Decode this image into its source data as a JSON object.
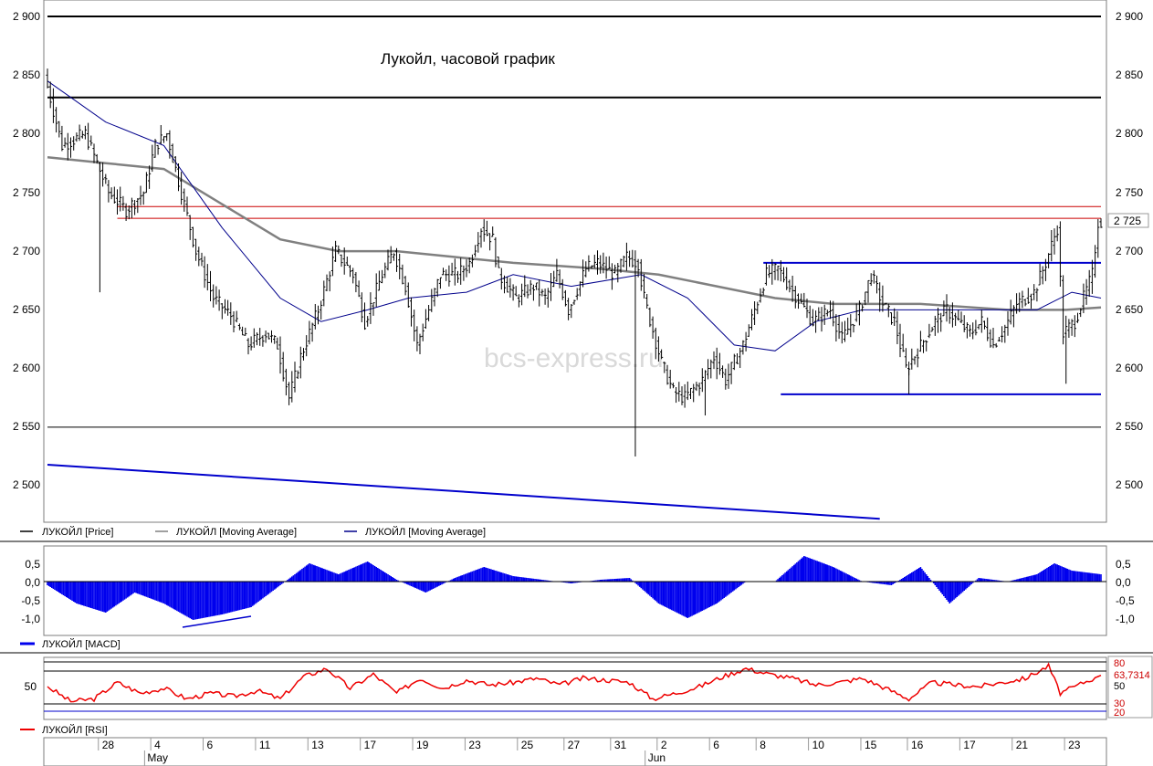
{
  "chart_data": [
    {
      "type": "candlestick",
      "title": "Лукойл, часовой график",
      "watermark": "bcs-express.ru",
      "ylim": [
        2470,
        2910
      ],
      "y_ticks": [
        "2 900",
        "2 850",
        "2 800",
        "2 750",
        "2 700",
        "2 650",
        "2 600",
        "2 550",
        "2 500"
      ],
      "last_price_label": "2 725",
      "legend": [
        "ЛУКОЙЛ [Price]",
        "ЛУКОЙЛ [Moving Average]",
        "ЛУКОЙЛ [Moving Average]"
      ],
      "series_colors": {
        "price": "#000000",
        "ma_slow": "#808080",
        "ma_fast": "#00008b"
      },
      "price_path": [
        [
          0,
          2850
        ],
        [
          3,
          2790
        ],
        [
          7,
          2800
        ],
        [
          11,
          2750
        ],
        [
          14,
          2735
        ],
        [
          17,
          2750
        ],
        [
          19,
          2790
        ],
        [
          21,
          2800
        ],
        [
          24,
          2740
        ],
        [
          26,
          2700
        ],
        [
          29,
          2660
        ],
        [
          32,
          2645
        ],
        [
          35,
          2620
        ],
        [
          38,
          2630
        ],
        [
          40,
          2620
        ],
        [
          42,
          2575
        ],
        [
          44,
          2610
        ],
        [
          47,
          2650
        ],
        [
          50,
          2700
        ],
        [
          53,
          2680
        ],
        [
          55,
          2640
        ],
        [
          58,
          2680
        ],
        [
          60,
          2700
        ],
        [
          62,
          2670
        ],
        [
          64,
          2620
        ],
        [
          66,
          2650
        ],
        [
          68,
          2680
        ],
        [
          71,
          2680
        ],
        [
          73,
          2690
        ],
        [
          75,
          2720
        ],
        [
          77,
          2710
        ],
        [
          78,
          2680
        ],
        [
          81,
          2660
        ],
        [
          84,
          2670
        ],
        [
          86,
          2660
        ],
        [
          88,
          2680
        ],
        [
          90,
          2650
        ],
        [
          93,
          2685
        ],
        [
          95,
          2690
        ],
        [
          98,
          2680
        ],
        [
          100,
          2695
        ],
        [
          102,
          2690
        ],
        [
          103,
          2660
        ],
        [
          106,
          2605
        ],
        [
          108,
          2580
        ],
        [
          110,
          2575
        ],
        [
          113,
          2590
        ],
        [
          115,
          2610
        ],
        [
          117,
          2590
        ],
        [
          120,
          2620
        ],
        [
          122,
          2650
        ],
        [
          124,
          2680
        ],
        [
          126,
          2685
        ],
        [
          128,
          2670
        ],
        [
          130,
          2655
        ],
        [
          132,
          2640
        ],
        [
          135,
          2650
        ],
        [
          137,
          2625
        ],
        [
          140,
          2650
        ],
        [
          142,
          2680
        ],
        [
          144,
          2655
        ],
        [
          146,
          2640
        ],
        [
          148,
          2600
        ],
        [
          150,
          2615
        ],
        [
          153,
          2640
        ],
        [
          155,
          2650
        ],
        [
          157,
          2640
        ],
        [
          159,
          2630
        ],
        [
          161,
          2640
        ],
        [
          163,
          2620
        ],
        [
          165,
          2635
        ],
        [
          167,
          2655
        ],
        [
          170,
          2665
        ],
        [
          172,
          2690
        ],
        [
          174,
          2720
        ],
        [
          175,
          2630
        ],
        [
          177,
          2640
        ],
        [
          180,
          2680
        ],
        [
          181,
          2725
        ]
      ],
      "ma_fast_path": [
        [
          0,
          2845
        ],
        [
          10,
          2810
        ],
        [
          20,
          2790
        ],
        [
          30,
          2720
        ],
        [
          40,
          2660
        ],
        [
          47,
          2640
        ],
        [
          55,
          2650
        ],
        [
          62,
          2660
        ],
        [
          72,
          2665
        ],
        [
          80,
          2680
        ],
        [
          90,
          2670
        ],
        [
          102,
          2680
        ],
        [
          110,
          2660
        ],
        [
          118,
          2620
        ],
        [
          125,
          2615
        ],
        [
          132,
          2640
        ],
        [
          140,
          2650
        ],
        [
          150,
          2650
        ],
        [
          160,
          2650
        ],
        [
          170,
          2650
        ],
        [
          176,
          2665
        ],
        [
          181,
          2660
        ]
      ],
      "ma_slow_path": [
        [
          0,
          2780
        ],
        [
          10,
          2775
        ],
        [
          20,
          2770
        ],
        [
          30,
          2740
        ],
        [
          40,
          2710
        ],
        [
          50,
          2700
        ],
        [
          60,
          2700
        ],
        [
          70,
          2695
        ],
        [
          80,
          2690
        ],
        [
          95,
          2685
        ],
        [
          105,
          2680
        ],
        [
          115,
          2670
        ],
        [
          125,
          2660
        ],
        [
          135,
          2655
        ],
        [
          150,
          2655
        ],
        [
          165,
          2650
        ],
        [
          175,
          2650
        ],
        [
          181,
          2652
        ]
      ],
      "annotation_lines": [
        {
          "color": "#000000",
          "width": 2,
          "points": [
            [
              0,
              2900
            ],
            [
              181,
              2900
            ]
          ]
        },
        {
          "color": "#000000",
          "width": 2,
          "points": [
            [
              0,
              2831
            ],
            [
              181,
              2831
            ]
          ]
        },
        {
          "color": "#000000",
          "width": 1,
          "points": [
            [
              0,
              2550
            ],
            [
              181,
              2550
            ]
          ]
        },
        {
          "color": "#cc0000",
          "width": 1,
          "points": [
            [
              12,
              2738
            ],
            [
              181,
              2738
            ]
          ]
        },
        {
          "color": "#cc0000",
          "width": 1,
          "points": [
            [
              12,
              2728
            ],
            [
              181,
              2728
            ]
          ]
        },
        {
          "color": "#0000cc",
          "width": 2,
          "points": [
            [
              123,
              2690
            ],
            [
              181,
              2690
            ]
          ]
        },
        {
          "color": "#0000cc",
          "width": 2,
          "points": [
            [
              126,
              2578
            ],
            [
              181,
              2578
            ]
          ]
        },
        {
          "color": "#0000cc",
          "width": 2,
          "points": [
            [
              0,
              2518
            ],
            [
              143,
              2472
            ]
          ]
        }
      ]
    },
    {
      "type": "area",
      "legend": "ЛУКОЙЛ [MACD]",
      "color": "#0000ee",
      "ylim": [
        -1.2,
        0.75
      ],
      "y_ticks": [
        "0,5",
        "0,0",
        "-0,5",
        "-1,0"
      ],
      "x": [
        0,
        5,
        10,
        15,
        20,
        25,
        30,
        35,
        40,
        45,
        50,
        55,
        60,
        65,
        70,
        75,
        80,
        85,
        90,
        95,
        100,
        105,
        110,
        115,
        120,
        125,
        130,
        135,
        140,
        145,
        150,
        155,
        160,
        165,
        170,
        173,
        176,
        181
      ],
      "values": [
        -0.1,
        -0.6,
        -0.85,
        -0.3,
        -0.6,
        -1.05,
        -0.9,
        -0.7,
        -0.1,
        0.5,
        0.2,
        0.55,
        0.05,
        -0.3,
        0.1,
        0.4,
        0.15,
        0.05,
        -0.05,
        0.05,
        0.1,
        -0.6,
        -1.0,
        -0.6,
        0.0,
        0.0,
        0.7,
        0.4,
        0.0,
        -0.1,
        0.4,
        -0.6,
        0.1,
        0.0,
        0.2,
        0.5,
        0.3,
        0.2
      ]
    },
    {
      "type": "line",
      "legend": "ЛУКОЙЛ [RSI]",
      "color": "#ee0000",
      "ylim": [
        10,
        90
      ],
      "y_ticks": [
        "50"
      ],
      "level_badges": [
        "80",
        "63,7314",
        "50",
        "30",
        "20"
      ],
      "x": [
        0,
        4,
        8,
        12,
        16,
        20,
        24,
        28,
        32,
        36,
        40,
        44,
        48,
        52,
        56,
        60,
        64,
        68,
        72,
        76,
        80,
        84,
        88,
        92,
        96,
        100,
        104,
        108,
        112,
        116,
        120,
        124,
        128,
        132,
        136,
        140,
        144,
        148,
        152,
        156,
        160,
        164,
        168,
        172,
        174,
        176,
        178,
        181
      ],
      "values": [
        50,
        32,
        35,
        55,
        42,
        48,
        35,
        42,
        38,
        45,
        35,
        62,
        72,
        48,
        65,
        42,
        60,
        48,
        58,
        52,
        55,
        60,
        52,
        60,
        58,
        55,
        35,
        42,
        50,
        62,
        72,
        65,
        60,
        52,
        55,
        60,
        48,
        35,
        55,
        52,
        50,
        55,
        60,
        75,
        42,
        48,
        55,
        63.7
      ],
      "x_labels": [
        "28",
        "4",
        "6",
        "11",
        "13",
        "17",
        "19",
        "23",
        "25",
        "27",
        "31",
        "2",
        "6",
        "8",
        "10",
        "15",
        "16",
        "17",
        "21",
        "23"
      ],
      "months": [
        "May",
        "Jun"
      ]
    }
  ]
}
